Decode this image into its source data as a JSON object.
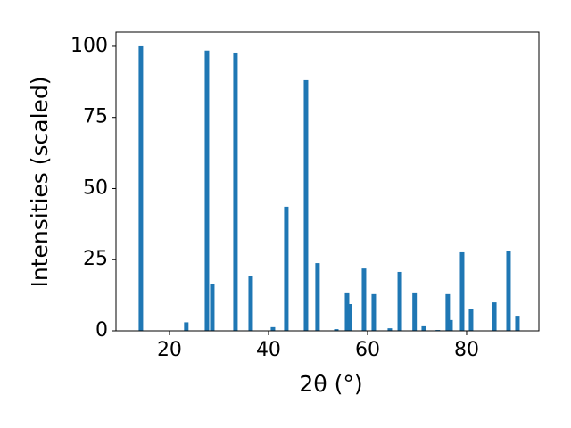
{
  "chart_data": {
    "type": "bar",
    "xlabel": "2θ (°)",
    "ylabel": "Intensities (scaled)",
    "x": [
      14.23,
      23.4,
      27.57,
      28.65,
      33.33,
      36.4,
      40.9,
      43.6,
      47.57,
      49.9,
      53.7,
      55.86,
      56.4,
      59.28,
      61.26,
      64.5,
      66.5,
      69.5,
      71.35,
      74.2,
      76.2,
      76.76,
      79.1,
      80.9,
      85.6,
      88.47,
      90.27
    ],
    "values": [
      100,
      3,
      98.5,
      16.3,
      97.8,
      19.4,
      1.3,
      43.6,
      88.1,
      23.8,
      0.6,
      13.2,
      9.4,
      21.9,
      12.9,
      0.9,
      20.7,
      13.2,
      1.6,
      0.3,
      12.9,
      3.8,
      27.6,
      7.8,
      10,
      28.2,
      5.3
    ],
    "color": "#1f77b4",
    "xlim": [
      9.2,
      94.6
    ],
    "xticks": [
      20,
      40,
      60,
      80
    ],
    "ylim": [
      0,
      105
    ],
    "yticks": [
      0,
      25,
      50,
      75,
      100
    ]
  }
}
